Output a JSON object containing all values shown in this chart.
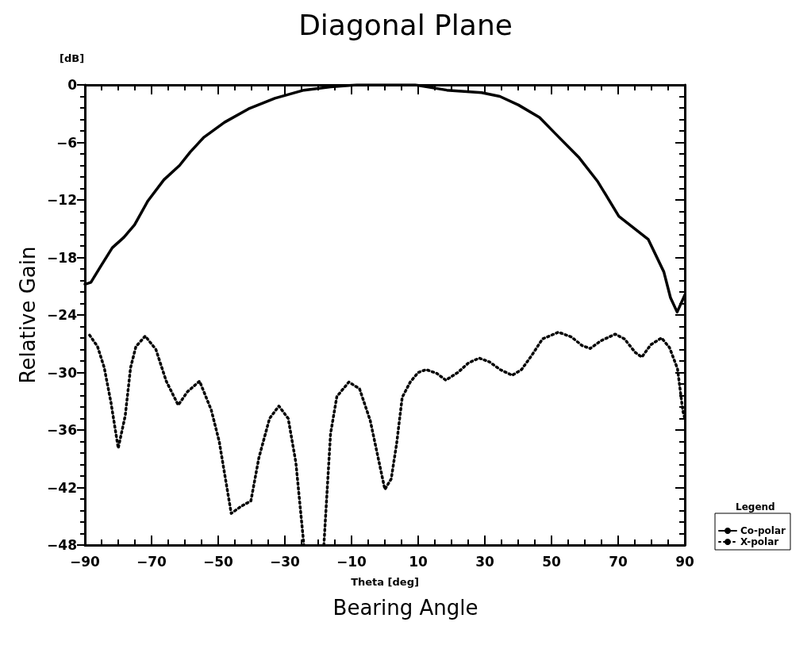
{
  "chart_data": {
    "type": "line",
    "title": "Diagonal Plane",
    "xlabel": "Theta [deg]",
    "ylabel": "Relative Gain",
    "legend_title": "Legend",
    "annotations": [
      "[dB]",
      "Bearing Angle"
    ],
    "xlim": [
      -90,
      90
    ],
    "xticks": [
      -90,
      -70,
      -50,
      -30,
      -10,
      10,
      30,
      50,
      70,
      90
    ],
    "ylim": [
      -48,
      0
    ],
    "yticks": [
      -48,
      -42,
      -36,
      -30,
      -24,
      -18,
      -12,
      -6,
      0
    ],
    "grid": false,
    "legend": "bottom right",
    "marker": "none",
    "series": [
      {
        "name": "Co-polar",
        "color": "#000000",
        "line_style": "solid",
        "x": [
          -90,
          -88.2,
          -85.4,
          -81.8,
          -78.3,
          -75.1,
          -71.1,
          -66.3,
          -61.6,
          -58.4,
          -54.4,
          -48.1,
          -40.9,
          -33,
          -24.3,
          -16.3,
          -8.4,
          0,
          9.1,
          18.6,
          29,
          34.5,
          40.1,
          46.4,
          51.2,
          58.3,
          63.9,
          70.2,
          79,
          83.7,
          85.7,
          87.7,
          90
        ],
        "values": [
          -20.8,
          -20.6,
          -19,
          -17,
          -15.9,
          -14.6,
          -12.1,
          -9.9,
          -8.4,
          -7,
          -5.5,
          -3.9,
          -2.5,
          -1.4,
          -0.55,
          -0.2,
          0,
          0,
          0,
          -0.55,
          -0.8,
          -1.2,
          -2.1,
          -3.4,
          -5.1,
          -7.6,
          -10.1,
          -13.7,
          -16.1,
          -19.5,
          -22.2,
          -23.7,
          -21.9
        ]
      },
      {
        "name": "X-polar",
        "color": "#000000",
        "line_style": "dotted",
        "x": [
          -88.6,
          -86.2,
          -84.2,
          -82.2,
          -80,
          -77.9,
          -76.3,
          -74.7,
          -71.9,
          -68.7,
          -65.6,
          -62,
          -59.2,
          -55.6,
          -52.1,
          -49.7,
          -46.1,
          -43.3,
          -40.2,
          -37.8,
          -34.6,
          -31.8,
          -29,
          -26.7,
          -24.3,
          -21,
          -18.3,
          -16.3,
          -14.4,
          -10.8,
          -7.6,
          -4.4,
          0,
          1.9,
          3.5,
          5.2,
          7.6,
          10,
          12.4,
          15.6,
          18.3,
          21.9,
          25.1,
          28.3,
          31.4,
          34.6,
          38.2,
          41,
          44.1,
          47.3,
          52.1,
          56,
          59.2,
          61.6,
          64.8,
          69.1,
          71.9,
          75.1,
          77.1,
          79.8,
          83,
          85.4,
          87.8,
          89.4,
          90
        ],
        "values": [
          -26.1,
          -27.3,
          -29.5,
          -33.1,
          -37.9,
          -34.5,
          -29.5,
          -27.3,
          -26.2,
          -27.6,
          -30.9,
          -33.4,
          -32,
          -30.9,
          -33.9,
          -37.2,
          -44.7,
          -44,
          -43.4,
          -38.9,
          -34.8,
          -33.5,
          -34.8,
          -39.4,
          -48,
          null,
          -48,
          -36.4,
          -32.5,
          -31,
          -31.7,
          -35,
          -42.2,
          -41.1,
          -37.5,
          -32.6,
          -31,
          -30,
          -29.7,
          -30.1,
          -30.8,
          -30,
          -29,
          -28.5,
          -28.9,
          -29.7,
          -30.3,
          -29.7,
          -28.2,
          -26.5,
          -25.8,
          -26.3,
          -27.2,
          -27.5,
          -26.7,
          -26,
          -26.5,
          -27.9,
          -28.4,
          -27.1,
          -26.4,
          -27.4,
          -29.6,
          -34,
          -34.8
        ]
      }
    ]
  }
}
